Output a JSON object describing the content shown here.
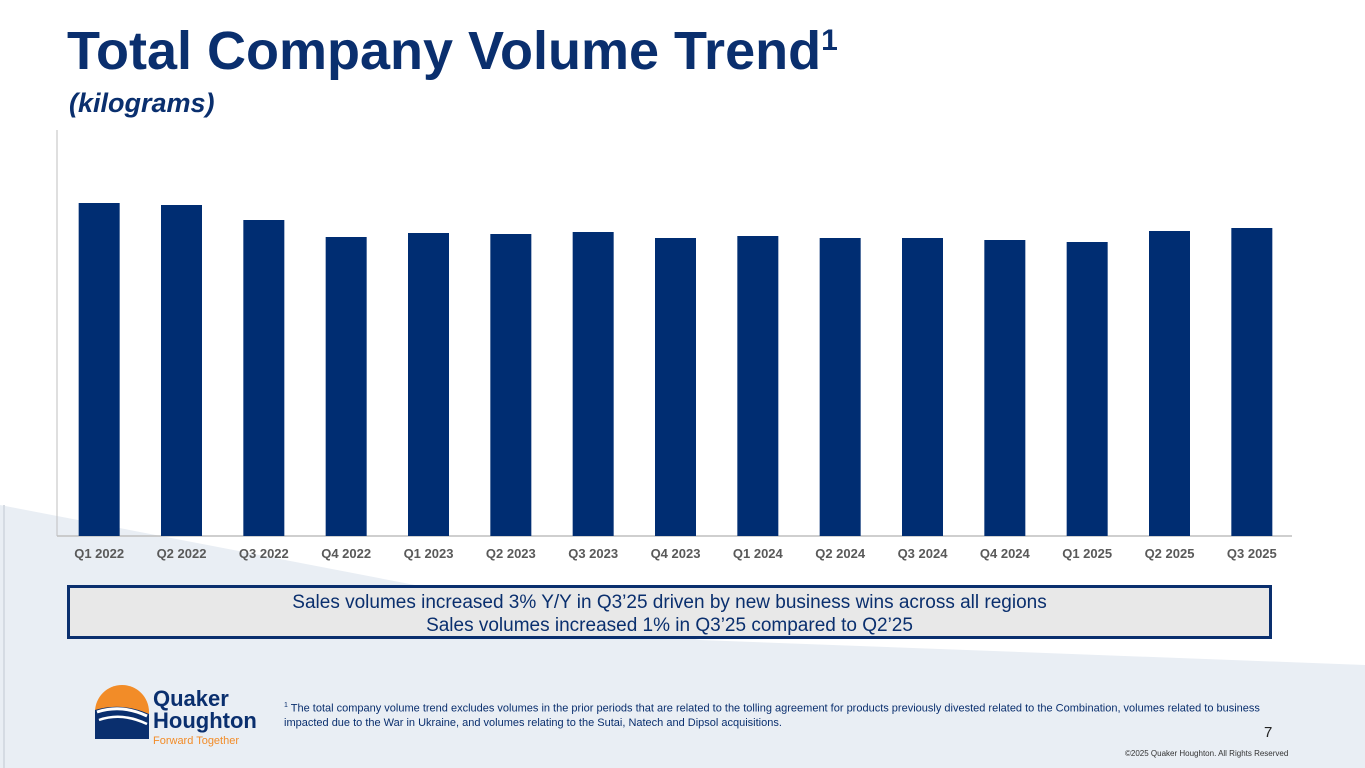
{
  "title": "Total Company Volume Trend",
  "title_superscript": "1",
  "subtitle": "(kilograms)",
  "chart_data": {
    "type": "bar",
    "title": "Total Company Volume Trend (kilograms)",
    "xlabel": "",
    "ylabel": "",
    "note": "No y-axis shown; values are relative index estimates from bar heights",
    "categories": [
      "Q1 2022",
      "Q2 2022",
      "Q3 2022",
      "Q4 2022",
      "Q1 2023",
      "Q2 2023",
      "Q3 2023",
      "Q4 2023",
      "Q1 2024",
      "Q2 2024",
      "Q3 2024",
      "Q4 2024",
      "Q1 2025",
      "Q2 2025",
      "Q3 2025"
    ],
    "values": [
      333,
      331,
      316,
      299,
      303,
      302,
      304,
      298,
      300,
      298,
      298,
      296,
      294,
      305,
      308
    ],
    "ylim": [
      0,
      400
    ],
    "grid": false,
    "bar_color": "#002d72"
  },
  "callout": {
    "line1": "Sales volumes increased 3% Y/Y in Q3’25 driven by new business wins across all regions",
    "line2": "Sales volumes increased 1% in Q3’25 compared to Q2’25"
  },
  "footnote": {
    "marker": "1",
    "text": " The total company volume trend excludes volumes in the prior periods that are related to the tolling agreement for products previously divested related to the Combination, volumes related to business impacted due to the War in Ukraine, and volumes relating to the Sutai, Natech and Dipsol acquisitions."
  },
  "logo": {
    "line1": "Quaker",
    "line2": "Houghton",
    "tagline": "Forward Together"
  },
  "page_number": "7",
  "copyright": "©2025 Quaker Houghton. All Rights Reserved"
}
